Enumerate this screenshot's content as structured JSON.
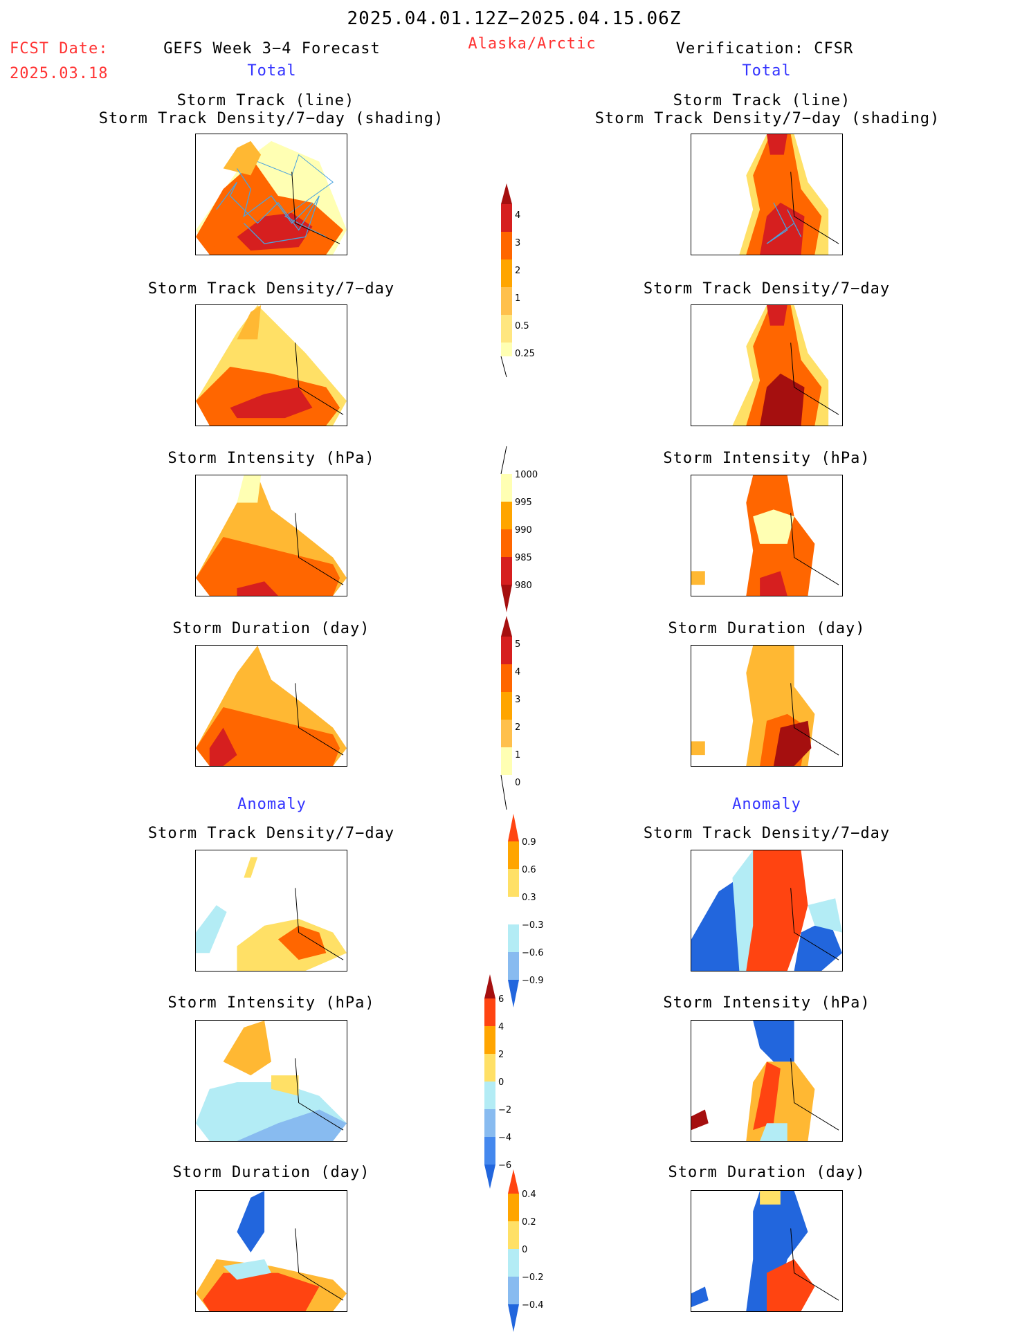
{
  "header": {
    "date_range": "2025.04.01.12Z−2025.04.15.06Z",
    "fcst_label": "FCST Date:",
    "fcst_date": "2025.03.18",
    "forecast_title": "GEFS Week 3−4 Forecast",
    "region": "Alaska/Arctic",
    "verification": "Verification: CFSR",
    "left_section": "Total",
    "right_section": "Total"
  },
  "anomaly": {
    "left": "Anomaly",
    "right": "Anomaly"
  },
  "panel_titles": {
    "track_line": "Storm Track (line)",
    "track_shading": "Storm Track Density/7−day (shading)",
    "density": "Storm Track Density/7−day",
    "intensity": "Storm Intensity (hPa)",
    "duration": "Storm Duration (day)"
  },
  "colorbars": {
    "density": [
      "0.25",
      "0.5",
      "1",
      "2",
      "3",
      "4"
    ],
    "intensity": [
      "1000",
      "995",
      "990",
      "985",
      "980"
    ],
    "duration": [
      "0",
      "1",
      "2",
      "3",
      "4",
      "5"
    ],
    "density_anom": [
      "0.9",
      "0.6",
      "0.3",
      "−0.3",
      "−0.6",
      "−0.9"
    ],
    "intensity_anom": [
      "6",
      "4",
      "2",
      "0",
      "−2",
      "−4",
      "−6"
    ],
    "duration_anom": [
      "0.4",
      "0.2",
      "0",
      "−0.2",
      "−0.4"
    ]
  },
  "colors": {
    "title_red": "#ff3333",
    "title_blue": "#3333ff",
    "track_line": "#4aa3df"
  }
}
